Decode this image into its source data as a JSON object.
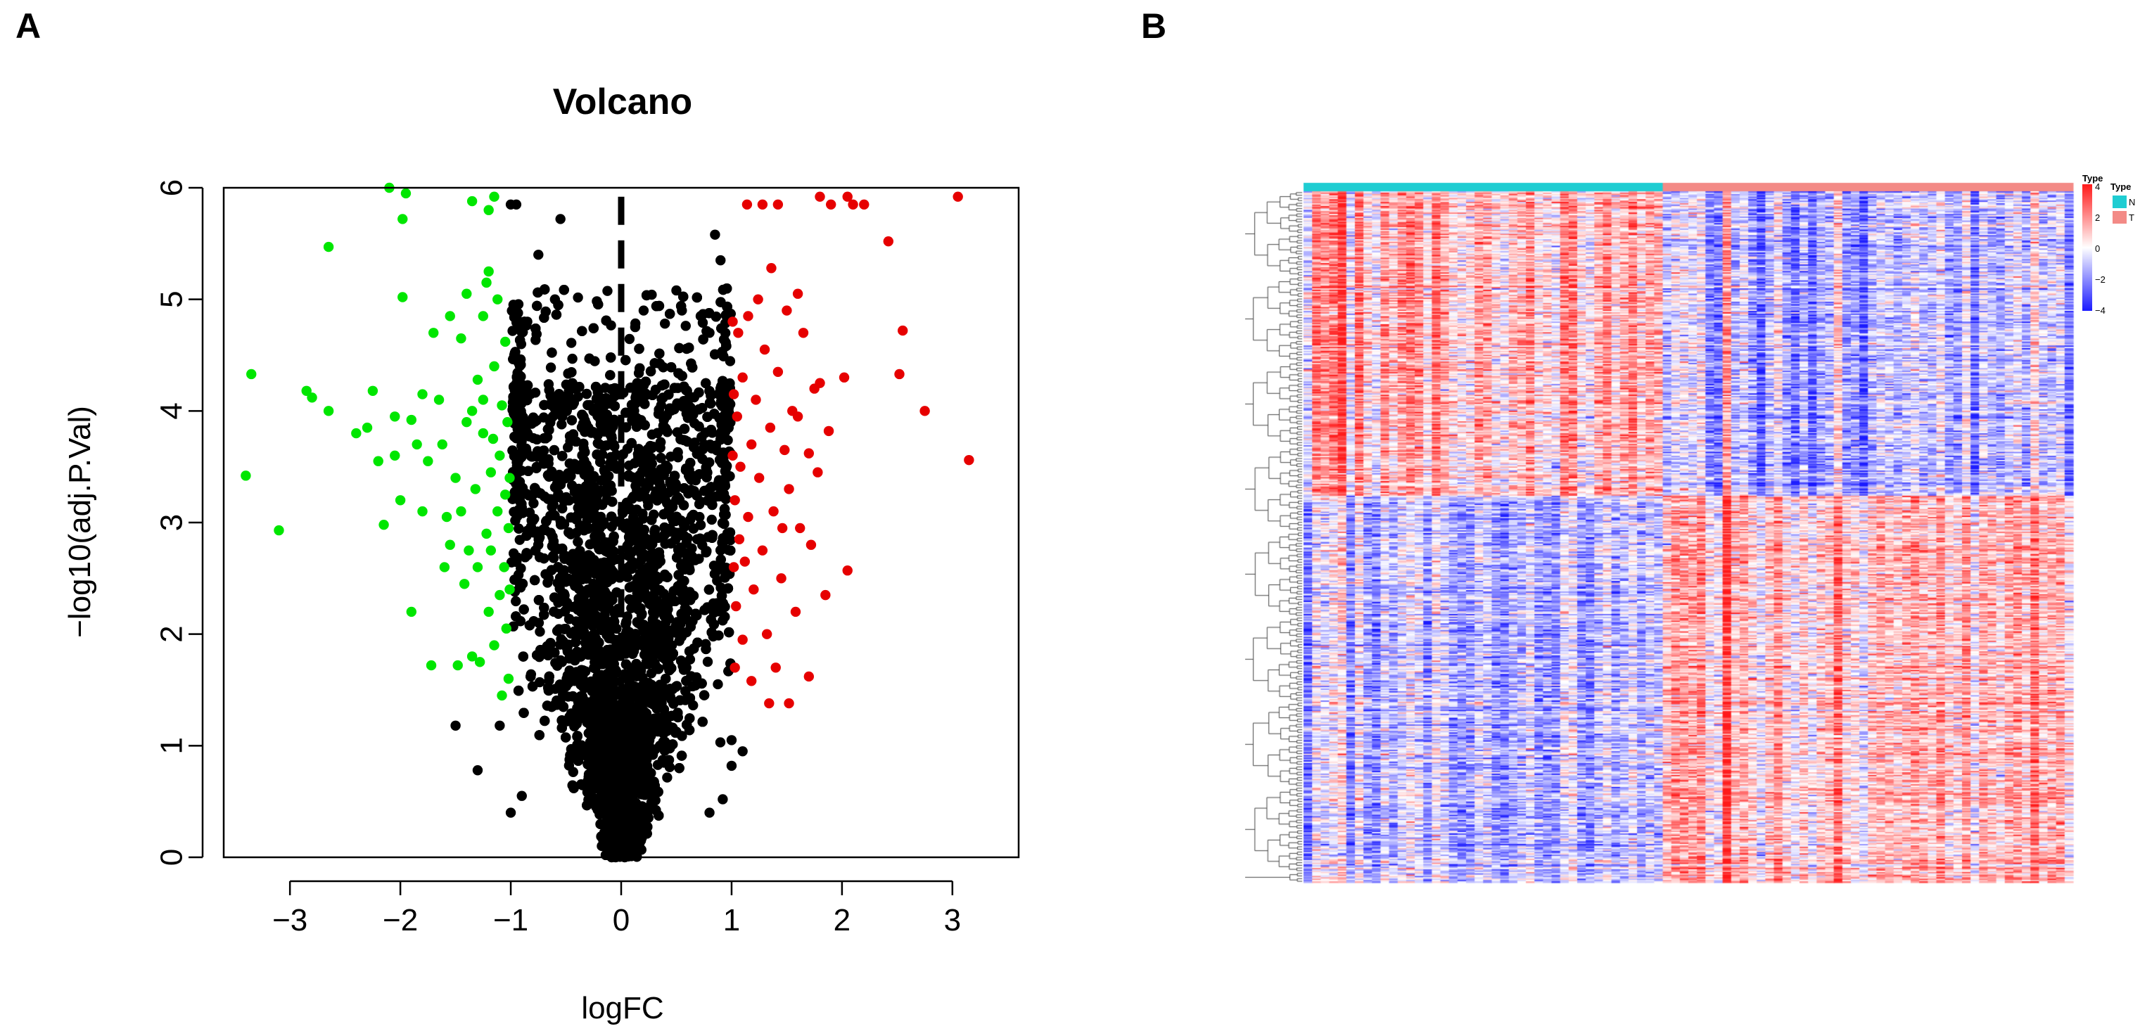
{
  "panels": {
    "a": "A",
    "b": "B"
  },
  "chart_data": [
    {
      "type": "scatter",
      "title": "Volcano",
      "xlabel": "logFC",
      "ylabel": "−log10(adj.P.Val)",
      "xlim": [
        -3.6,
        3.6
      ],
      "ylim": [
        0,
        6
      ],
      "xticks": [
        -3,
        -2,
        -1,
        0,
        1,
        2,
        3
      ],
      "xtick_labels": [
        "−3",
        "−2",
        "−1",
        "0",
        "1",
        "2",
        "3"
      ],
      "yticks": [
        0,
        1,
        2,
        3,
        4,
        5,
        6
      ],
      "ytick_labels": [
        "0",
        "1",
        "2",
        "3",
        "4",
        "5",
        "6"
      ],
      "thresholds": {
        "logFC": 1,
        "vline": 0
      },
      "colors": {
        "down": "#00e600",
        "up": "#e60000",
        "ns": "#000000"
      },
      "series": [
        {
          "name": "down",
          "color": "#00e600",
          "points": [
            [
              -3.35,
              4.33
            ],
            [
              -3.4,
              3.42
            ],
            [
              -3.1,
              2.93
            ],
            [
              -2.85,
              4.18
            ],
            [
              -2.8,
              4.12
            ],
            [
              -2.65,
              4.0
            ],
            [
              -2.65,
              5.47
            ],
            [
              -2.4,
              3.8
            ],
            [
              -2.3,
              3.85
            ],
            [
              -2.25,
              4.18
            ],
            [
              -2.2,
              3.55
            ],
            [
              -2.15,
              2.98
            ],
            [
              -2.1,
              6.0
            ],
            [
              -2.05,
              3.95
            ],
            [
              -2.05,
              3.6
            ],
            [
              -2.0,
              3.2
            ],
            [
              -1.98,
              5.02
            ],
            [
              -1.98,
              5.72
            ],
            [
              -1.95,
              5.95
            ],
            [
              -1.9,
              3.92
            ],
            [
              -1.9,
              2.2
            ],
            [
              -1.85,
              3.7
            ],
            [
              -1.8,
              4.15
            ],
            [
              -1.8,
              3.1
            ],
            [
              -1.75,
              3.55
            ],
            [
              -1.72,
              1.72
            ],
            [
              -1.7,
              4.7
            ],
            [
              -1.65,
              4.1
            ],
            [
              -1.62,
              3.7
            ],
            [
              -1.6,
              2.6
            ],
            [
              -1.58,
              3.05
            ],
            [
              -1.55,
              4.85
            ],
            [
              -1.55,
              2.8
            ],
            [
              -1.5,
              3.4
            ],
            [
              -1.48,
              1.72
            ],
            [
              -1.45,
              4.65
            ],
            [
              -1.45,
              3.1
            ],
            [
              -1.42,
              2.45
            ],
            [
              -1.4,
              5.05
            ],
            [
              -1.4,
              3.9
            ],
            [
              -1.38,
              2.75
            ],
            [
              -1.35,
              4.0
            ],
            [
              -1.35,
              1.8
            ],
            [
              -1.32,
              3.3
            ],
            [
              -1.3,
              2.6
            ],
            [
              -1.3,
              4.28
            ],
            [
              -1.28,
              1.75
            ],
            [
              -1.25,
              4.85
            ],
            [
              -1.25,
              3.8
            ],
            [
              -1.22,
              2.9
            ],
            [
              -1.2,
              2.2
            ],
            [
              -1.2,
              5.25
            ],
            [
              -1.18,
              3.45
            ],
            [
              -1.18,
              2.75
            ],
            [
              -1.15,
              4.4
            ],
            [
              -1.15,
              1.9
            ],
            [
              -1.12,
              5.0
            ],
            [
              -1.12,
              3.1
            ],
            [
              -1.1,
              2.35
            ],
            [
              -1.1,
              3.6
            ],
            [
              -1.08,
              4.05
            ],
            [
              -1.08,
              1.45
            ],
            [
              -1.06,
              2.6
            ],
            [
              -1.05,
              3.25
            ],
            [
              -1.05,
              4.62
            ],
            [
              -1.04,
              2.05
            ],
            [
              -1.03,
              3.9
            ],
            [
              -1.02,
              2.95
            ],
            [
              -1.02,
              1.6
            ],
            [
              -1.01,
              3.4
            ],
            [
              -1.01,
              2.4
            ],
            [
              -1.15,
              5.92
            ],
            [
              -1.2,
              5.8
            ],
            [
              -1.22,
              5.15
            ],
            [
              -1.35,
              5.88
            ],
            [
              -1.25,
              4.1
            ],
            [
              -1.16,
              3.75
            ]
          ]
        },
        {
          "name": "up",
          "color": "#e60000",
          "points": [
            [
              3.15,
              3.56
            ],
            [
              3.05,
              5.92
            ],
            [
              2.75,
              4.0
            ],
            [
              2.55,
              4.72
            ],
            [
              2.52,
              4.33
            ],
            [
              2.42,
              5.52
            ],
            [
              2.2,
              5.85
            ],
            [
              2.1,
              5.85
            ],
            [
              2.05,
              5.92
            ],
            [
              2.05,
              2.57
            ],
            [
              2.02,
              4.3
            ],
            [
              1.9,
              5.85
            ],
            [
              1.8,
              5.92
            ],
            [
              1.88,
              3.82
            ],
            [
              1.85,
              2.35
            ],
            [
              1.8,
              4.25
            ],
            [
              1.78,
              3.45
            ],
            [
              1.75,
              4.2
            ],
            [
              1.72,
              2.8
            ],
            [
              1.7,
              3.62
            ],
            [
              1.65,
              4.7
            ],
            [
              1.62,
              2.95
            ],
            [
              1.6,
              5.05
            ],
            [
              1.58,
              2.2
            ],
            [
              1.55,
              4.0
            ],
            [
              1.52,
              3.3
            ],
            [
              1.52,
              1.38
            ],
            [
              1.5,
              4.9
            ],
            [
              1.48,
              3.65
            ],
            [
              1.45,
              2.5
            ],
            [
              1.42,
              5.85
            ],
            [
              1.42,
              4.35
            ],
            [
              1.4,
              1.7
            ],
            [
              1.38,
              3.1
            ],
            [
              1.36,
              5.28
            ],
            [
              1.35,
              3.85
            ],
            [
              1.32,
              2.0
            ],
            [
              1.3,
              4.55
            ],
            [
              1.28,
              2.75
            ],
            [
              1.28,
              5.85
            ],
            [
              1.25,
              3.4
            ],
            [
              1.22,
              4.1
            ],
            [
              1.2,
              2.4
            ],
            [
              1.18,
              3.7
            ],
            [
              1.18,
              1.58
            ],
            [
              1.15,
              4.85
            ],
            [
              1.15,
              3.05
            ],
            [
              1.12,
              2.65
            ],
            [
              1.1,
              4.3
            ],
            [
              1.1,
              1.95
            ],
            [
              1.08,
              3.5
            ],
            [
              1.07,
              2.85
            ],
            [
              1.06,
              4.7
            ],
            [
              1.05,
              3.95
            ],
            [
              1.04,
              2.25
            ],
            [
              1.03,
              3.2
            ],
            [
              1.03,
              1.7
            ],
            [
              1.02,
              4.15
            ],
            [
              1.02,
              2.6
            ],
            [
              1.01,
              3.6
            ],
            [
              1.01,
              4.8
            ],
            [
              1.14,
              5.85
            ],
            [
              1.24,
              5.0
            ],
            [
              1.34,
              1.38
            ],
            [
              1.46,
              2.95
            ],
            [
              1.6,
              3.95
            ],
            [
              1.7,
              1.62
            ]
          ]
        },
        {
          "name": "ns",
          "color": "#000000",
          "generator": "v-shape",
          "count": 6000,
          "points": [
            [
              -1.0,
              5.85
            ],
            [
              -0.95,
              5.85
            ],
            [
              -0.75,
              5.4
            ],
            [
              -0.55,
              5.72
            ],
            [
              -0.6,
              5.0
            ],
            [
              -0.85,
              4.8
            ],
            [
              0.85,
              5.58
            ],
            [
              0.9,
              5.35
            ],
            [
              0.5,
              5.08
            ],
            [
              0.72,
              4.85
            ],
            [
              0.8,
              4.7
            ],
            [
              0.55,
              4.9
            ],
            [
              -1.5,
              1.18
            ],
            [
              -1.3,
              0.78
            ],
            [
              -1.0,
              0.4
            ],
            [
              -0.9,
              0.55
            ],
            [
              1.0,
              1.05
            ],
            [
              1.1,
              0.95
            ],
            [
              0.92,
              0.52
            ],
            [
              0.8,
              0.4
            ],
            [
              1.0,
              0.82
            ],
            [
              -1.1,
              1.18
            ]
          ]
        }
      ]
    },
    {
      "type": "heatmap",
      "rows": 520,
      "columns": 90,
      "groups": [
        {
          "name": "N",
          "color": "#1fcdd2",
          "columns": 42
        },
        {
          "name": "T",
          "color": "#f38a86",
          "columns": 48
        }
      ],
      "color_scale": {
        "min": -4,
        "max": 4,
        "low": "#1a1aff",
        "mid": "#ffffff",
        "high": "#ff1a1a"
      },
      "legend": {
        "annotation_title": "Type",
        "group_title": "Type",
        "scale_ticks": [
          "4",
          "2",
          "0",
          "−2",
          "−4"
        ],
        "group_labels": [
          "N",
          "T"
        ]
      }
    }
  ]
}
